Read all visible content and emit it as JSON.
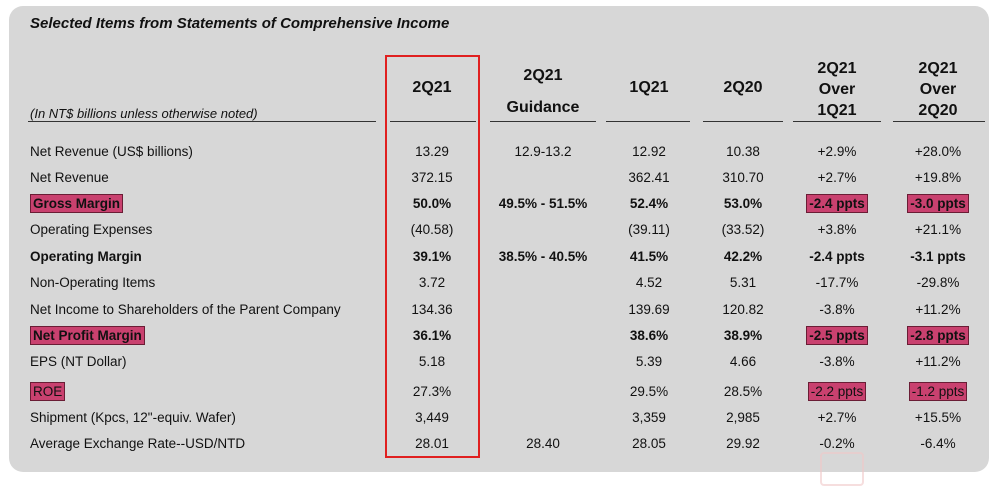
{
  "title": "Selected Items from Statements of Comprehensive Income",
  "note": "(In NT$ billions unless otherwise noted)",
  "headers": {
    "c1": "2Q21",
    "c2_line1": "2Q21",
    "c2_line2": "Guidance",
    "c3": "1Q21",
    "c4": "2Q20",
    "c5_line1": "2Q21",
    "c5_line2": "Over",
    "c5_line3": "1Q21",
    "c6_line1": "2Q21",
    "c6_line2": "Over",
    "c6_line3": "2Q20"
  },
  "highlight_color": "#c9416f",
  "box_color": "#e02020",
  "rows": [
    {
      "label": "Net Revenue (US$ billions)",
      "c1": "13.29",
      "c2": "12.9-13.2",
      "c3": "12.92",
      "c4": "10.38",
      "c5": "+2.9%",
      "c6": "+28.0%"
    },
    {
      "label": "Net Revenue",
      "c1": "372.15",
      "c2": "",
      "c3": "362.41",
      "c4": "310.70",
      "c5": "+2.7%",
      "c6": "+19.8%"
    },
    {
      "label": "Gross Margin",
      "c1": "50.0%",
      "c2": "49.5% - 51.5%",
      "c3": "52.4%",
      "c4": "53.0%",
      "c5": "-2.4 ppts",
      "c6": "-3.0 ppts"
    },
    {
      "label": "Operating Expenses",
      "c1": "(40.58)",
      "c2": "",
      "c3": "(39.11)",
      "c4": "(33.52)",
      "c5": "+3.8%",
      "c6": "+21.1%"
    },
    {
      "label": "Operating Margin",
      "c1": "39.1%",
      "c2": "38.5% - 40.5%",
      "c3": "41.5%",
      "c4": "42.2%",
      "c5": "-2.4 ppts",
      "c6": "-3.1 ppts"
    },
    {
      "label": "Non-Operating Items",
      "c1": "3.72",
      "c2": "",
      "c3": "4.52",
      "c4": "5.31",
      "c5": "-17.7%",
      "c6": "-29.8%"
    },
    {
      "label": "Net Income to Shareholders of the Parent Company",
      "c1": "134.36",
      "c2": "",
      "c3": "139.69",
      "c4": "120.82",
      "c5": "-3.8%",
      "c6": "+11.2%"
    },
    {
      "label": "Net Profit Margin",
      "c1": "36.1%",
      "c2": "",
      "c3": "38.6%",
      "c4": "38.9%",
      "c5": "-2.5 ppts",
      "c6": "-2.8 ppts"
    },
    {
      "label": "EPS (NT Dollar)",
      "c1": "5.18",
      "c2": "",
      "c3": "5.39",
      "c4": "4.66",
      "c5": "-3.8%",
      "c6": "+11.2%"
    },
    {
      "label": "ROE",
      "c1": "27.3%",
      "c2": "",
      "c3": "29.5%",
      "c4": "28.5%",
      "c5": "-2.2 ppts",
      "c6": "-1.2 ppts"
    },
    {
      "label": "Shipment (Kpcs, 12\"-equiv. Wafer)",
      "c1": "3,449",
      "c2": "",
      "c3": "3,359",
      "c4": "2,985",
      "c5": "+2.7%",
      "c6": "+15.5%"
    },
    {
      "label": "Average Exchange Rate--USD/NTD",
      "c1": "28.01",
      "c2": "28.40",
      "c3": "28.05",
      "c4": "29.92",
      "c5": "-0.2%",
      "c6": "-6.4%"
    }
  ]
}
